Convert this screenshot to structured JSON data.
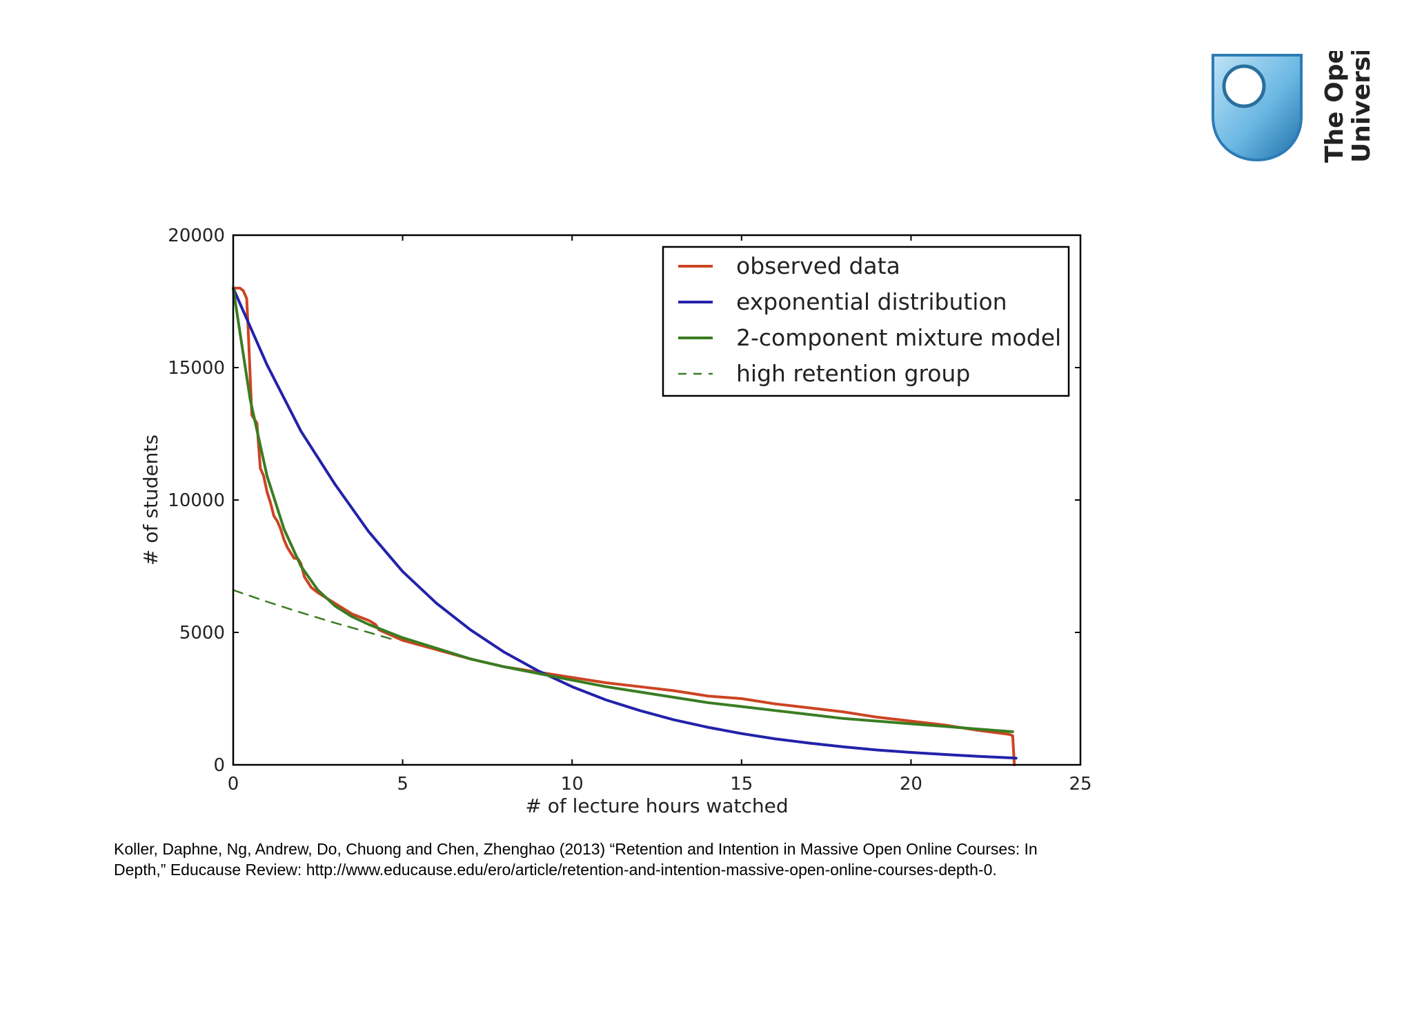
{
  "logo": {
    "name_line1": "The Open",
    "name_line2": "University"
  },
  "chart_data": {
    "type": "line",
    "title": "",
    "xlabel": "# of lecture hours watched",
    "ylabel": "# of students",
    "xlim": [
      0,
      25
    ],
    "ylim": [
      0,
      20000
    ],
    "x_ticks": [
      0,
      5,
      10,
      15,
      20,
      25
    ],
    "y_ticks": [
      0,
      5000,
      10000,
      15000,
      20000
    ],
    "legend_position": "top-right",
    "series": [
      {
        "name": "observed data",
        "color": "#cc4422",
        "style": "solid",
        "x": [
          0,
          0.2,
          0.3,
          0.4,
          0.45,
          0.55,
          0.7,
          0.8,
          0.9,
          1.0,
          1.1,
          1.2,
          1.3,
          1.4,
          1.5,
          1.6,
          1.7,
          1.8,
          1.9,
          2.0,
          2.1,
          2.2,
          2.3,
          2.5,
          3.0,
          3.5,
          4.0,
          4.2,
          4.3,
          5.0,
          6.0,
          7.0,
          8.0,
          9.0,
          10.0,
          11.0,
          12.0,
          13.0,
          14.0,
          15.0,
          16.0,
          17.0,
          18.0,
          19.0,
          20.0,
          21.0,
          22.0,
          22.9,
          23.0,
          23.05
        ],
        "y": [
          18000,
          18000,
          17900,
          17600,
          16200,
          13200,
          12900,
          11200,
          10900,
          10300,
          9900,
          9400,
          9200,
          8900,
          8500,
          8200,
          8000,
          7800,
          7800,
          7600,
          7100,
          6900,
          6700,
          6500,
          6100,
          5700,
          5450,
          5300,
          5100,
          4700,
          4350,
          4000,
          3700,
          3500,
          3300,
          3100,
          2950,
          2800,
          2600,
          2500,
          2300,
          2150,
          2000,
          1800,
          1650,
          1500,
          1300,
          1150,
          1100,
          0
        ]
      },
      {
        "name": "exponential distribution",
        "color": "#2222aa",
        "style": "solid",
        "x": [
          0,
          1,
          2,
          3,
          4,
          5,
          6,
          7,
          8,
          9,
          10,
          11,
          12,
          13,
          14,
          15,
          16,
          17,
          18,
          19,
          20,
          21,
          22,
          23,
          23.1
        ],
        "y": [
          18000,
          15100,
          12600,
          10600,
          8800,
          7300,
          6100,
          5100,
          4250,
          3550,
          2950,
          2450,
          2050,
          1700,
          1420,
          1180,
          980,
          820,
          680,
          560,
          470,
          390,
          320,
          260,
          250
        ]
      },
      {
        "name": "2-component mixture model",
        "color": "#3a7d22",
        "style": "solid",
        "x": [
          0,
          0.5,
          1,
          1.5,
          2,
          2.5,
          3,
          3.5,
          4,
          5,
          6,
          7,
          8,
          9,
          10,
          11,
          12,
          13,
          14,
          15,
          16,
          17,
          18,
          19,
          20,
          21,
          22,
          23
        ],
        "y": [
          18000,
          13800,
          10900,
          8900,
          7500,
          6600,
          6000,
          5600,
          5300,
          4800,
          4400,
          4000,
          3700,
          3450,
          3200,
          2950,
          2750,
          2550,
          2350,
          2200,
          2050,
          1900,
          1750,
          1650,
          1550,
          1450,
          1350,
          1250
        ]
      },
      {
        "name": "high retention group",
        "color": "#3a7d22",
        "style": "dashed",
        "x": [
          0,
          1,
          2,
          3,
          4,
          4.8
        ],
        "y": [
          6600,
          6160,
          5750,
          5360,
          5000,
          4700
        ]
      }
    ]
  },
  "citation": {
    "line1": "Koller, Daphne, Ng, Andrew, Do, Chuong and Chen, Zhenghao (2013) “Retention and Intention in Massive Open Online Courses: In",
    "line2": "Depth,” Educause Review: http://www.educause.edu/ero/article/retention-and-intention-massive-open-online-courses-depth-0."
  }
}
